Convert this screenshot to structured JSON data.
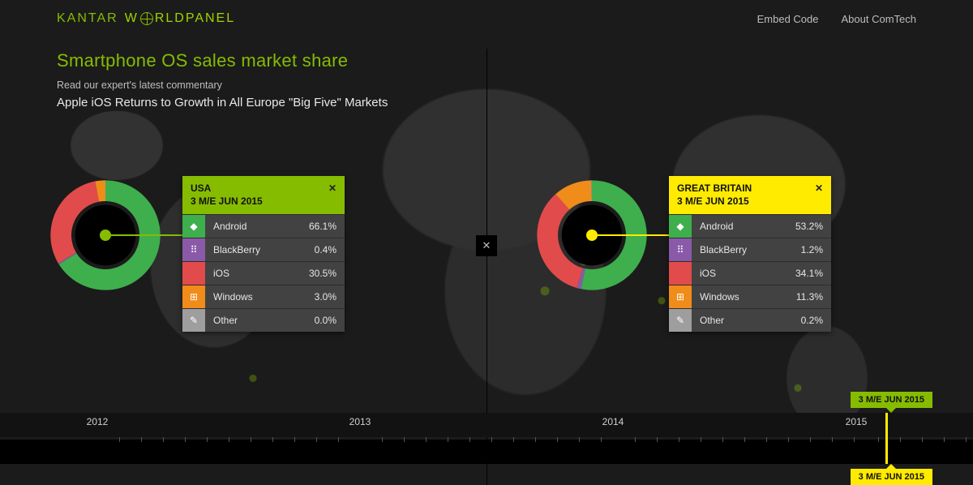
{
  "brand": {
    "name_a": "KANTAR",
    "name_b": "W",
    "name_c": "RLDPANEL"
  },
  "nav": {
    "embed": "Embed Code",
    "about": "About ComTech"
  },
  "heading": {
    "title": "Smartphone OS sales market share",
    "subtitle": "Read our expert's latest commentary",
    "headline": "Apple iOS Returns to Growth in All Europe \"Big Five\" Markets"
  },
  "colors": {
    "accent_green": "#86bc00",
    "accent_yellow": "#ffeb00",
    "android": "#3fae4d",
    "blackberry": "#8a5aa8",
    "ios": "#e24b4b",
    "windows": "#f08c1a",
    "other": "#9e9e9e",
    "card_bg": "#424242",
    "page_bg": "#1b1b1b"
  },
  "panels": {
    "left": {
      "card_head_bg": "#86bc00",
      "center_dot_color": "#86bc00",
      "leader_color": "#86bc00",
      "country": "USA",
      "period": "3 M/E JUN 2015",
      "donut": {
        "type": "donut",
        "outer_r": 58,
        "inner_r": 36,
        "series": [
          {
            "key": "android",
            "label": "Android",
            "value": 66.1,
            "color": "#3fae4d",
            "icon": "◆"
          },
          {
            "key": "blackberry",
            "label": "BlackBerry",
            "value": 0.4,
            "color": "#8a5aa8",
            "icon": "⠿"
          },
          {
            "key": "ios",
            "label": "iOS",
            "value": 30.5,
            "color": "#e24b4b",
            "icon": ""
          },
          {
            "key": "windows",
            "label": "Windows",
            "value": 3.0,
            "color": "#f08c1a",
            "icon": "⊞"
          },
          {
            "key": "other",
            "label": "Other",
            "value": 0.0,
            "color": "#9e9e9e",
            "icon": "✎"
          }
        ]
      }
    },
    "right": {
      "card_head_bg": "#ffeb00",
      "center_dot_color": "#ffeb00",
      "leader_color": "#ffeb00",
      "country": "GREAT BRITAIN",
      "period": "3 M/E JUN 2015",
      "donut": {
        "type": "donut",
        "outer_r": 58,
        "inner_r": 36,
        "series": [
          {
            "key": "android",
            "label": "Android",
            "value": 53.2,
            "color": "#3fae4d",
            "icon": "◆"
          },
          {
            "key": "blackberry",
            "label": "BlackBerry",
            "value": 1.2,
            "color": "#8a5aa8",
            "icon": "⠿"
          },
          {
            "key": "ios",
            "label": "iOS",
            "value": 34.1,
            "color": "#e24b4b",
            "icon": ""
          },
          {
            "key": "windows",
            "label": "Windows",
            "value": 11.3,
            "color": "#f08c1a",
            "icon": "⊞"
          },
          {
            "key": "other",
            "label": "Other",
            "value": 0.2,
            "color": "#9e9e9e",
            "icon": "✎"
          }
        ]
      }
    }
  },
  "timeline": {
    "years": [
      {
        "label": "2012",
        "x_pct": 10
      },
      {
        "label": "2013",
        "x_pct": 37
      },
      {
        "label": "2014",
        "x_pct": 63
      },
      {
        "label": "2015",
        "x_pct": 88
      }
    ],
    "flag_green": "3 M/E JUN 2015",
    "flag_yellow": "3 M/E JUN 2015",
    "scrub_left_pct": 91,
    "scrub_right_pct": 91
  },
  "close_glyph": "✕"
}
